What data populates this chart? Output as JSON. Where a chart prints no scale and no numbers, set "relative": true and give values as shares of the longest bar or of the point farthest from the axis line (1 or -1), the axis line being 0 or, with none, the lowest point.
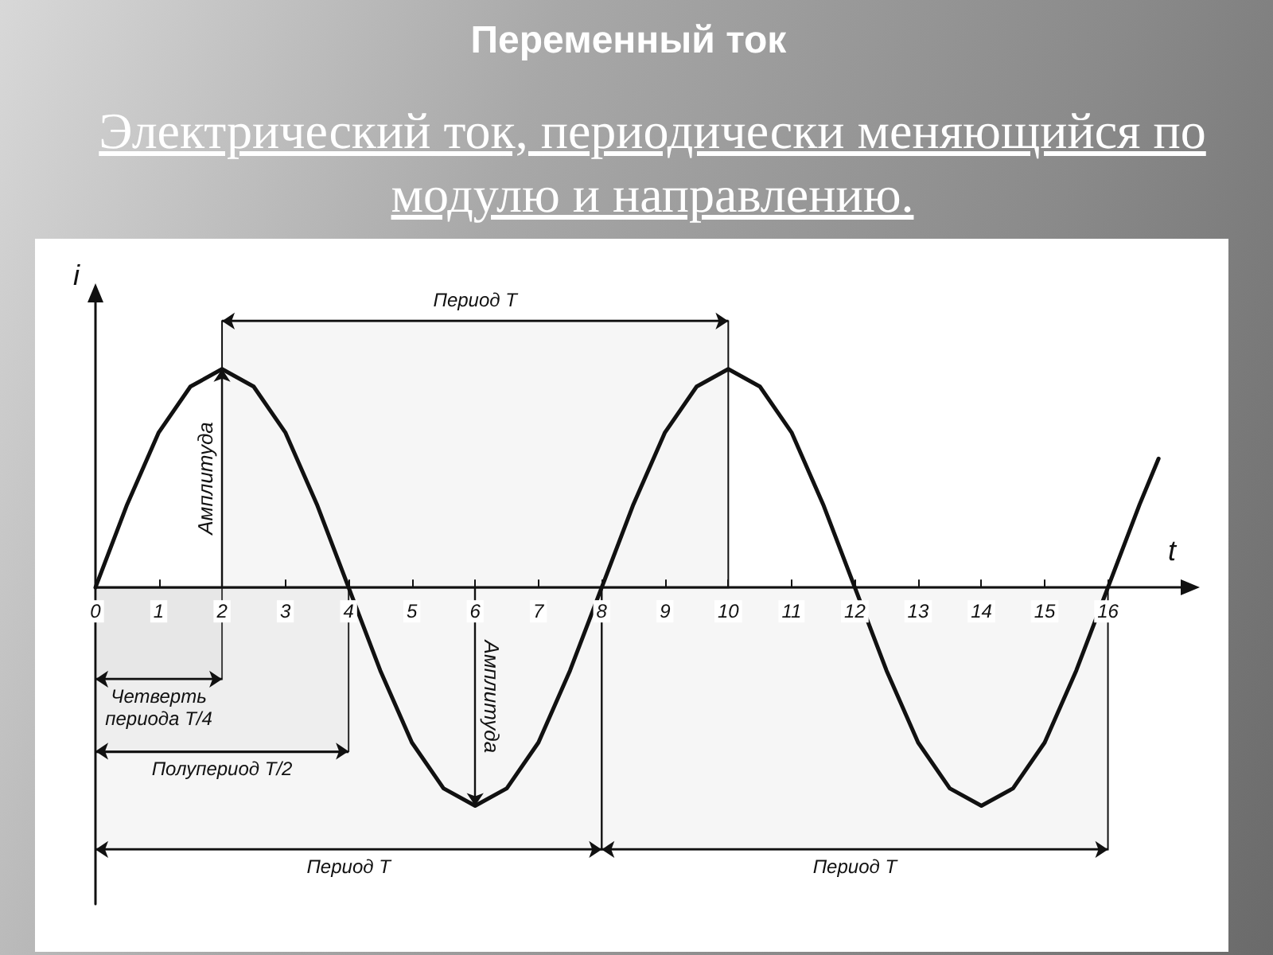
{
  "chart_data": {
    "type": "line",
    "title": "Переменный ток",
    "subtitle": "Электрический ток, периодически меняющийся по модулю и направлению.",
    "xlabel": "t",
    "ylabel": "i",
    "relative": true,
    "x": [
      0,
      0.5,
      1,
      1.5,
      2,
      2.5,
      3,
      3.5,
      4,
      4.5,
      5,
      5.5,
      6,
      6.5,
      7,
      7.5,
      8,
      8.5,
      9,
      9.5,
      10,
      10.5,
      11,
      11.5,
      12,
      12.5,
      13,
      13.5,
      14,
      14.5,
      15,
      15.5,
      16,
      16.5,
      16.8
    ],
    "series": [
      {
        "color": "#111111",
        "values": [
          0,
          0.38,
          0.71,
          0.92,
          1,
          0.92,
          0.71,
          0.38,
          0,
          -0.38,
          -0.71,
          -0.92,
          -1,
          -0.92,
          -0.71,
          -0.38,
          0,
          0.38,
          0.71,
          0.92,
          1,
          0.92,
          0.71,
          0.38,
          0,
          -0.38,
          -0.71,
          -0.92,
          -1,
          -0.92,
          -0.71,
          -0.38,
          0,
          0.38,
          0.59
        ]
      }
    ],
    "xlim": [
      0,
      17.2
    ],
    "xticks": [
      0,
      1,
      2,
      3,
      4,
      5,
      6,
      7,
      8,
      9,
      10,
      11,
      12,
      13,
      14,
      15,
      16
    ],
    "annotations": [
      {
        "text": "Амплитуда",
        "x": 2,
        "y": 1
      },
      {
        "text": "Амплитуда",
        "x": 6,
        "y": -1
      }
    ],
    "bands": [
      {
        "axis": "x",
        "from": 2,
        "to": 10,
        "label": "Период T"
      },
      {
        "axis": "x",
        "from": 0,
        "to": 2,
        "label": "Четверть периода T/4"
      },
      {
        "axis": "x",
        "from": 0,
        "to": 4,
        "label": "Полупериод T/2"
      },
      {
        "axis": "x",
        "from": 0,
        "to": 8,
        "label": "Период T"
      },
      {
        "axis": "x",
        "from": 8,
        "to": 16,
        "label": "Период T"
      }
    ],
    "grid": false,
    "marker": "none",
    "line_style": "solid"
  }
}
